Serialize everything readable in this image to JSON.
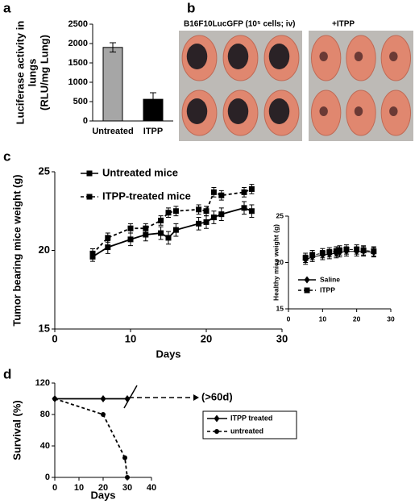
{
  "panel_labels": [
    "a",
    "b",
    "c",
    "d"
  ],
  "photo_captions": [
    "B16F10LucGFP (10⁵ cells; iv)",
    "+ITPP"
  ],
  "chart_data": [
    {
      "type": "bar",
      "ylabel": [
        "Luciferase activity in",
        "lungs",
        "(RLU/mg Lung)"
      ],
      "categories": [
        "Untreated",
        "ITPP"
      ],
      "values": [
        1900,
        560
      ],
      "errors": [
        120,
        170
      ],
      "colors": [
        "#a6a6a6",
        "#000000"
      ],
      "ylim": [
        0,
        2500
      ],
      "yticks": [
        0,
        500,
        1000,
        1500,
        2000,
        2500
      ]
    },
    {
      "type": "line",
      "xlabel": "Days",
      "ylabel": "Tumor bearing mice weight (g)",
      "xlim": [
        0,
        30
      ],
      "xticks": [
        0,
        10,
        20,
        30
      ],
      "ylim": [
        15,
        25
      ],
      "yticks": [
        15,
        20,
        25
      ],
      "series": [
        {
          "name": "Untreated mice",
          "color": "#000000",
          "dash": false,
          "marker": "square",
          "x": [
            5,
            7,
            10,
            12,
            14,
            15,
            16,
            19,
            20,
            21,
            22,
            25,
            26
          ],
          "values": [
            19.6,
            20.2,
            20.7,
            21.0,
            21.1,
            20.8,
            21.3,
            21.7,
            21.8,
            22.1,
            22.3,
            22.7,
            22.5
          ],
          "errors": [
            0.3,
            0.4,
            0.4,
            0.4,
            0.4,
            0.4,
            0.4,
            0.4,
            0.4,
            0.4,
            0.4,
            0.4,
            0.4
          ]
        },
        {
          "name": "ITPP-treated mice",
          "color": "#000000",
          "dash": true,
          "marker": "square",
          "x": [
            5,
            7,
            10,
            12,
            14,
            15,
            16,
            19,
            20,
            21,
            22,
            25,
            26
          ],
          "values": [
            19.8,
            20.8,
            21.4,
            21.4,
            21.9,
            22.4,
            22.5,
            22.6,
            22.5,
            23.7,
            23.5,
            23.7,
            23.9
          ],
          "errors": [
            0.3,
            0.3,
            0.3,
            0.3,
            0.3,
            0.3,
            0.3,
            0.3,
            0.3,
            0.3,
            0.3,
            0.3,
            0.3
          ]
        }
      ]
    },
    {
      "type": "line",
      "ylabel": "Healthy mice weight (g)",
      "xlim": [
        0,
        30
      ],
      "xticks": [
        0,
        10,
        20,
        30
      ],
      "ylim": [
        15,
        25
      ],
      "yticks": [
        15,
        20,
        25
      ],
      "series": [
        {
          "name": "Saline",
          "color": "#000000",
          "dash": false,
          "marker": "diamond",
          "x": [
            5,
            7,
            10,
            12,
            14,
            15,
            17,
            20,
            22,
            25
          ],
          "values": [
            20.3,
            20.6,
            20.8,
            20.9,
            21.0,
            21.1,
            21.2,
            21.2,
            21.2,
            21.1
          ],
          "errors": [
            0.5,
            0.5,
            0.5,
            0.5,
            0.5,
            0.5,
            0.5,
            0.5,
            0.5,
            0.5
          ]
        },
        {
          "name": "ITPP",
          "color": "#000000",
          "dash": true,
          "marker": "square",
          "x": [
            5,
            7,
            10,
            12,
            14,
            15,
            17,
            20,
            22,
            25
          ],
          "values": [
            20.5,
            20.8,
            21.0,
            21.1,
            21.2,
            21.3,
            21.4,
            21.4,
            21.3,
            21.2
          ],
          "errors": [
            0.5,
            0.5,
            0.5,
            0.5,
            0.5,
            0.5,
            0.5,
            0.5,
            0.5,
            0.5
          ]
        }
      ]
    },
    {
      "type": "line",
      "xlabel": "Days",
      "ylabel": "Survival (%)",
      "annotation": "(>60d)",
      "xlim": [
        0,
        40
      ],
      "xticks": [
        0,
        10,
        20,
        30,
        40
      ],
      "ylim": [
        0,
        120
      ],
      "yticks": [
        0,
        40,
        80,
        120
      ],
      "series": [
        {
          "name": "ITPP treated",
          "color": "#000000",
          "dash": false,
          "marker": "diamond",
          "x": [
            0,
            20,
            30
          ],
          "values": [
            100,
            100,
            100
          ]
        },
        {
          "name": "untreated",
          "color": "#000000",
          "dash": true,
          "marker": "circle",
          "x": [
            0,
            20,
            29,
            30
          ],
          "values": [
            100,
            80,
            25,
            0
          ]
        }
      ]
    }
  ]
}
